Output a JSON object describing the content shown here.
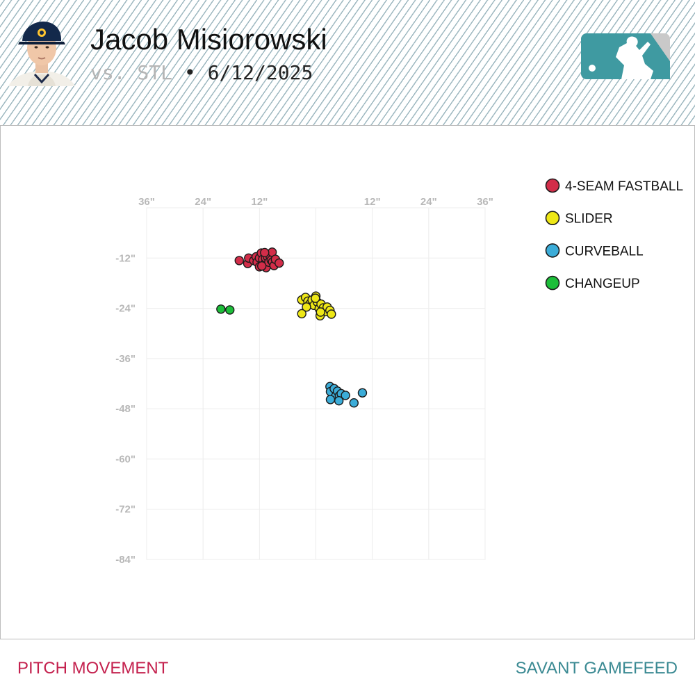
{
  "header": {
    "player_name": "Jacob Misiorowski",
    "opponent": "vs. STL",
    "separator": "•",
    "date": "6/12/2025",
    "avatar_icon": "player-headshot",
    "logo_icon": "mlb-logo"
  },
  "footer": {
    "left_label": "PITCH MOVEMENT",
    "right_label": "SAVANT GAMEFEED"
  },
  "colors": {
    "footer_left": "#c4214e",
    "footer_right": "#3b8a93",
    "logo_teal": "#3f9aa1",
    "logo_gray": "#c9c9c9"
  },
  "chart_data": {
    "type": "scatter",
    "x_tick_labels": [
      "36\"",
      "24\"",
      "12\"",
      "",
      "12\"",
      "24\"",
      "36\""
    ],
    "y_tick_labels": [
      "-12\"",
      "-24\"",
      "-36\"",
      "-48\"",
      "-60\"",
      "-72\"",
      "-84\""
    ],
    "x_range": [
      -36,
      36
    ],
    "y_range": [
      -84,
      0
    ],
    "grid": true,
    "legend_position": "top-right",
    "series": [
      {
        "name": "4-SEAM FASTBALL",
        "color": "#d22d49",
        "points": [
          [
            -14.5,
            -13.3
          ],
          [
            -14.3,
            -12.0
          ],
          [
            -13.2,
            -12.6
          ],
          [
            -12.7,
            -11.7
          ],
          [
            -12.5,
            -13.0
          ],
          [
            -12.0,
            -12.0
          ],
          [
            -11.6,
            -10.8
          ],
          [
            -11.3,
            -12.3
          ],
          [
            -11.0,
            -13.5
          ],
          [
            -10.7,
            -12.0
          ],
          [
            -10.6,
            -14.3
          ],
          [
            -10.3,
            -11.7
          ],
          [
            -10.0,
            -13.0
          ],
          [
            -9.8,
            -11.4
          ],
          [
            -9.5,
            -12.5
          ],
          [
            -9.3,
            -10.6
          ],
          [
            -9.2,
            -12.9
          ],
          [
            -8.9,
            -13.8
          ],
          [
            -8.6,
            -12.3
          ],
          [
            -7.8,
            -13.2
          ],
          [
            -12.0,
            -14.1
          ],
          [
            -10.9,
            -10.7
          ],
          [
            -16.3,
            -12.6
          ],
          [
            -11.5,
            -13.9
          ]
        ]
      },
      {
        "name": "SLIDER",
        "color": "#eee716",
        "points": [
          [
            -3.0,
            -22.0
          ],
          [
            -2.2,
            -21.4
          ],
          [
            -1.7,
            -22.3
          ],
          [
            -1.3,
            -23.0
          ],
          [
            -0.8,
            -22.0
          ],
          [
            -0.4,
            -23.3
          ],
          [
            0.0,
            -21.1
          ],
          [
            0.3,
            -22.5
          ],
          [
            0.7,
            -24.1
          ],
          [
            1.1,
            -23.0
          ],
          [
            1.6,
            -23.9
          ],
          [
            2.0,
            -24.8
          ],
          [
            2.4,
            -23.7
          ],
          [
            3.0,
            -24.5
          ],
          [
            -2.0,
            -23.7
          ],
          [
            -3.0,
            -25.3
          ],
          [
            0.9,
            -25.8
          ],
          [
            3.3,
            -25.4
          ],
          [
            -0.1,
            -21.6
          ],
          [
            1.0,
            -24.9
          ]
        ]
      },
      {
        "name": "CURVEBALL",
        "color": "#3bacd8",
        "points": [
          [
            3.0,
            -42.7
          ],
          [
            3.1,
            -43.9
          ],
          [
            3.9,
            -43.2
          ],
          [
            4.2,
            -45.0
          ],
          [
            4.6,
            -43.8
          ],
          [
            5.0,
            -44.9
          ],
          [
            5.4,
            -44.4
          ],
          [
            6.3,
            -44.8
          ],
          [
            4.9,
            -46.1
          ],
          [
            3.1,
            -45.8
          ],
          [
            8.1,
            -46.6
          ],
          [
            9.9,
            -44.2
          ]
        ]
      },
      {
        "name": "CHANGEUP",
        "color": "#1dbe3a",
        "points": [
          [
            -20.2,
            -24.2
          ],
          [
            -18.3,
            -24.4
          ]
        ]
      }
    ]
  }
}
